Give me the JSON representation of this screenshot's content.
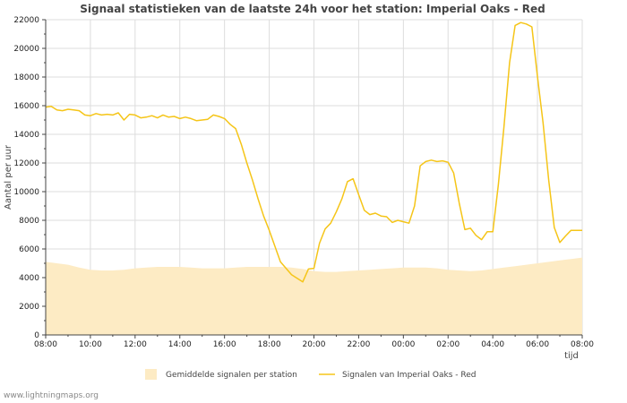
{
  "chart_data": {
    "type": "line",
    "title": "Signaal statistieken van de laatste 24h voor het station: Imperial Oaks - Red",
    "ylabel": "Aantal per uur",
    "xlabel": "tijd",
    "ylim": [
      0,
      22000
    ],
    "xlim": [
      0,
      24
    ],
    "y_ticks": [
      0,
      2000,
      4000,
      6000,
      8000,
      10000,
      12000,
      14000,
      16000,
      18000,
      20000,
      22000
    ],
    "x_ticks": [
      {
        "x": 0,
        "label": "08:00"
      },
      {
        "x": 2,
        "label": "10:00"
      },
      {
        "x": 4,
        "label": "12:00"
      },
      {
        "x": 6,
        "label": "14:00"
      },
      {
        "x": 8,
        "label": "16:00"
      },
      {
        "x": 10,
        "label": "18:00"
      },
      {
        "x": 12,
        "label": "20:00"
      },
      {
        "x": 14,
        "label": "22:00"
      },
      {
        "x": 16,
        "label": "00:00"
      },
      {
        "x": 18,
        "label": "02:00"
      },
      {
        "x": 20,
        "label": "04:00"
      },
      {
        "x": 22,
        "label": "06:00"
      },
      {
        "x": 24,
        "label": "08:00"
      }
    ],
    "grid": true,
    "legend": {
      "placement": "bottom"
    },
    "series": [
      {
        "name": "Gemiddelde signalen per station",
        "kind": "area",
        "color": "#fdebc4",
        "x": [
          0,
          0.5,
          1,
          1.5,
          2,
          2.5,
          3,
          3.5,
          4,
          4.5,
          5,
          5.5,
          6,
          6.5,
          7,
          7.5,
          8,
          8.5,
          9,
          9.5,
          10,
          10.5,
          11,
          11.5,
          12,
          12.5,
          13,
          13.5,
          14,
          14.5,
          15,
          15.5,
          16,
          16.5,
          17,
          17.5,
          18,
          18.5,
          19,
          19.5,
          20,
          20.5,
          21,
          21.5,
          22,
          22.5,
          23,
          23.5,
          24
        ],
        "values": [
          5100,
          5000,
          4900,
          4700,
          4550,
          4500,
          4500,
          4550,
          4650,
          4700,
          4750,
          4750,
          4750,
          4700,
          4650,
          4650,
          4650,
          4700,
          4750,
          4750,
          4750,
          4750,
          4700,
          4600,
          4450,
          4400,
          4400,
          4450,
          4500,
          4550,
          4600,
          4650,
          4700,
          4700,
          4700,
          4650,
          4550,
          4500,
          4450,
          4500,
          4600,
          4700,
          4800,
          4900,
          5000,
          5100,
          5200,
          5300,
          5400
        ]
      },
      {
        "name": "Signalen van Imperial Oaks - Red",
        "kind": "line",
        "color": "#f5c518",
        "x": [
          0,
          0.25,
          0.5,
          0.75,
          1,
          1.25,
          1.5,
          1.75,
          2,
          2.25,
          2.5,
          2.75,
          3,
          3.25,
          3.5,
          3.75,
          4,
          4.25,
          4.5,
          4.75,
          5,
          5.25,
          5.5,
          5.75,
          6,
          6.25,
          6.5,
          6.75,
          7,
          7.25,
          7.5,
          7.75,
          8,
          8.25,
          8.5,
          8.75,
          9,
          9.25,
          9.5,
          9.75,
          10,
          10.5,
          11,
          11.5,
          11.75,
          12,
          12.25,
          12.5,
          12.75,
          13,
          13.25,
          13.5,
          13.75,
          14,
          14.25,
          14.5,
          14.75,
          15,
          15.25,
          15.5,
          15.75,
          16,
          16.25,
          16.5,
          16.75,
          17,
          17.25,
          17.5,
          17.75,
          18,
          18.25,
          18.5,
          18.75,
          19,
          19.25,
          19.5,
          19.75,
          20,
          20.25,
          20.5,
          20.75,
          21,
          21.25,
          21.5,
          21.75,
          22,
          22.25,
          22.5,
          22.75,
          23,
          23.25,
          23.5,
          23.75,
          24
        ],
        "values": [
          15900,
          15950,
          15700,
          15650,
          15750,
          15700,
          15650,
          15350,
          15300,
          15450,
          15350,
          15400,
          15350,
          15500,
          15000,
          15400,
          15350,
          15150,
          15200,
          15300,
          15150,
          15350,
          15200,
          15250,
          15100,
          15200,
          15100,
          14950,
          15000,
          15050,
          15350,
          15250,
          15100,
          14700,
          14400,
          13300,
          12000,
          10800,
          9500,
          8300,
          7300,
          5100,
          4200,
          3700,
          4600,
          4650,
          6400,
          7400,
          7800,
          8600,
          9500,
          10700,
          10900,
          9800,
          8700,
          8400,
          8500,
          8300,
          8250,
          7850,
          8000,
          7900,
          7800,
          9000,
          11800,
          12100,
          12200,
          12100,
          12150,
          12050,
          11300,
          9200,
          7350,
          7450,
          6950,
          6650,
          7200,
          7200,
          10500,
          14500,
          19000,
          21600,
          21800,
          21700,
          21500,
          18000,
          14800,
          10800,
          7500,
          6450,
          6900,
          7300,
          7300,
          7300
        ]
      }
    ]
  },
  "footer": "www.lightningmaps.org"
}
